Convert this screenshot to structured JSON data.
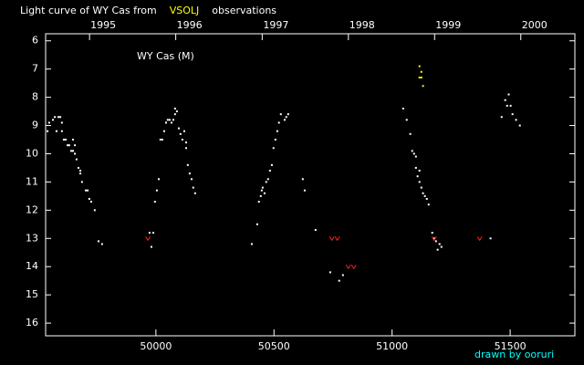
{
  "chart_data": {
    "type": "scatter",
    "title_parts": [
      "Light curve of WY Cas from",
      "VSOLJ",
      "observations"
    ],
    "title_colors": [
      "#ffffff",
      "#ffff00",
      "#ffffff"
    ],
    "annotation": "WY Cas (M)",
    "credit": "drawn by ooruri",
    "credit_color": "#00ffff",
    "background": "#000000",
    "axis_color": "#ffffff",
    "xlim": [
      49533,
      51774
    ],
    "xticks": [
      50000,
      50500,
      51000,
      51500
    ],
    "x2ticks": [
      {
        "value": 49719,
        "label": "1995"
      },
      {
        "value": 50084,
        "label": "1996"
      },
      {
        "value": 50450,
        "label": "1997"
      },
      {
        "value": 50815,
        "label": "1998"
      },
      {
        "value": 51180,
        "label": "1999"
      },
      {
        "value": 51545,
        "label": "2000"
      }
    ],
    "ylim": [
      5.75,
      16.45
    ],
    "y_inverted": true,
    "yticks": [
      6,
      7,
      8,
      9,
      10,
      11,
      12,
      13,
      14,
      15,
      16
    ],
    "grid": false,
    "series": [
      {
        "color": "#ffffff",
        "marker": "dot",
        "x": [
          49541,
          49548,
          49564,
          49572,
          49579,
          49587,
          49595,
          49602,
          49602,
          49610,
          49618,
          49626,
          49633,
          49641,
          49649,
          49649,
          49657,
          49657,
          49664,
          49672,
          49680,
          49680,
          49687,
          49703,
          49711,
          49718,
          49726,
          49741,
          49757,
          49772,
          49973,
          49981,
          49989,
          49996,
          50004,
          50012,
          50019,
          50027,
          50035,
          50043,
          50050,
          50058,
          50066,
          50074,
          50081,
          50081,
          50089,
          50097,
          50104,
          50112,
          50120,
          50128,
          50128,
          50135,
          50143,
          50151,
          50158,
          50166,
          50406,
          50429,
          50436,
          50444,
          50448,
          50452,
          50460,
          50467,
          50475,
          50483,
          50491,
          50498,
          50506,
          50514,
          50521,
          50529,
          50545,
          50552,
          50560,
          50622,
          50630,
          50676,
          50738,
          50776,
          50792,
          51047,
          51062,
          51077,
          51085,
          51093,
          51101,
          51101,
          51108,
          51116,
          51116,
          51124,
          51131,
          51139,
          51147,
          51155,
          51170,
          51178,
          51186,
          51193,
          51201,
          51209,
          51417,
          51464,
          51479,
          51487,
          51494,
          51502,
          51510,
          51525,
          51541
        ],
        "values": [
          9.2,
          8.9,
          8.8,
          8.7,
          9.2,
          8.7,
          8.7,
          8.9,
          9.2,
          9.5,
          9.5,
          9.7,
          9.7,
          9.9,
          9.9,
          9.5,
          9.7,
          10.0,
          10.2,
          10.5,
          10.7,
          10.6,
          11.0,
          11.3,
          11.3,
          11.6,
          11.7,
          12.0,
          13.1,
          13.2,
          12.8,
          13.3,
          12.8,
          11.7,
          11.3,
          10.9,
          9.5,
          9.5,
          9.2,
          8.9,
          8.8,
          8.8,
          8.9,
          8.8,
          8.6,
          8.4,
          8.5,
          9.1,
          9.3,
          9.5,
          9.2,
          9.8,
          9.6,
          10.4,
          10.7,
          10.9,
          11.2,
          11.4,
          13.2,
          12.5,
          11.7,
          11.5,
          11.3,
          11.2,
          11.4,
          11.0,
          10.9,
          10.6,
          10.4,
          9.8,
          9.5,
          9.2,
          8.9,
          8.6,
          8.8,
          8.7,
          8.6,
          10.9,
          11.3,
          12.7,
          14.2,
          14.5,
          14.3,
          8.4,
          8.8,
          9.3,
          9.9,
          10.0,
          10.1,
          10.5,
          10.8,
          11.0,
          10.6,
          11.2,
          11.4,
          11.5,
          11.6,
          11.8,
          12.8,
          13.0,
          13.1,
          13.4,
          13.2,
          13.3,
          13.0,
          8.7,
          8.1,
          8.3,
          7.9,
          8.3,
          8.6,
          8.8,
          9.0
        ]
      },
      {
        "color": "#ffff00",
        "marker": "dot",
        "x": [
          51116,
          51116,
          51124,
          51124,
          51131
        ],
        "values": [
          6.9,
          7.3,
          7.1,
          7.3,
          7.6
        ]
      },
      {
        "color": "#ff2020",
        "marker": "v",
        "x": [
          49966,
          50745,
          50768,
          50815,
          50838,
          51178,
          51371
        ],
        "values": [
          13.0,
          13.0,
          13.0,
          14.0,
          14.0,
          13.0,
          13.0
        ]
      }
    ]
  }
}
